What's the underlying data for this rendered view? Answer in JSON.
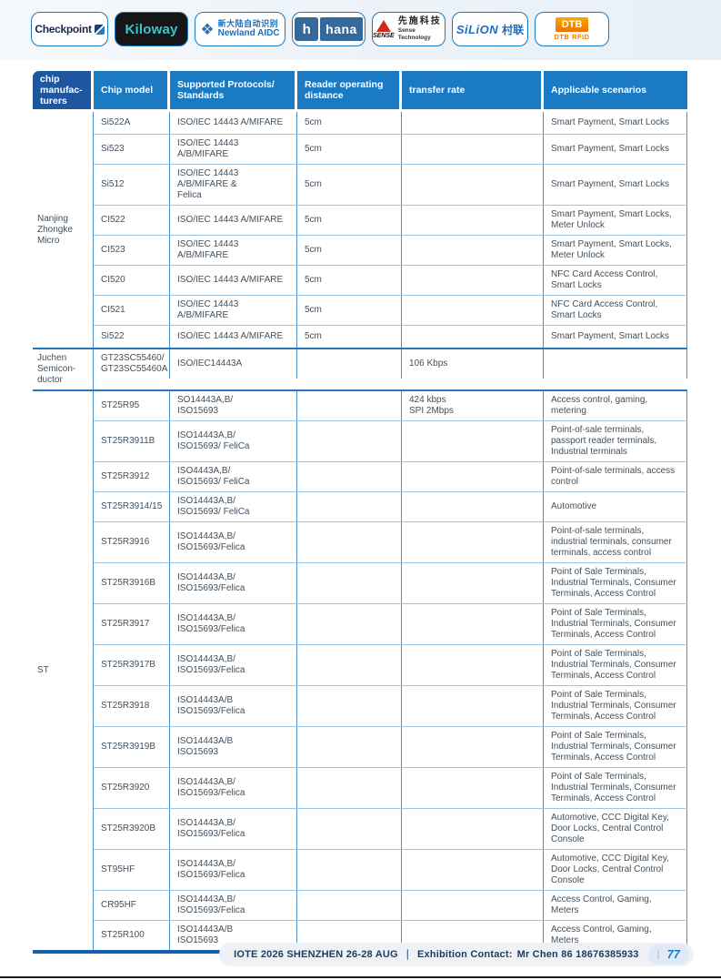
{
  "colors": {
    "accent_blue": "#1779c4",
    "header_first_cell": "#1e56a0",
    "header_cell": "#1a7ac4",
    "group_separator": "#2878bd",
    "row_separator": "#9ec4e4",
    "column_border": "#4a8fc7",
    "table_bottom_rule": "#1761ab",
    "body_text": "#42505c",
    "kiloway_cyan": "#38c5cd",
    "hana_blue": "#35689b",
    "sense_red": "#cf2a1b",
    "dtb_orange": "#ee7d00",
    "footer_bg": "#eef2f7"
  },
  "logos": {
    "checkpoint": {
      "text": "Checkpoint"
    },
    "kiloway": {
      "text": "Kiloway"
    },
    "newland": {
      "line1": "新大陆自动识别",
      "line2": "Newland AIDC"
    },
    "hana": {
      "icon_letter": "h",
      "text": "hana"
    },
    "sense": {
      "brand": "SENSE",
      "cn": "先施科技",
      "sub": "Sense Technology"
    },
    "silion": {
      "brand": "SiLiON",
      "cn": "村联"
    },
    "dtb": {
      "brand": "DTB",
      "sub": "DTB RFID"
    }
  },
  "table": {
    "headers": [
      "chip\nmanufac-\nturers",
      "Chip model",
      "Supported Protocols/\nStandards",
      "Reader operating\ndistance",
      "transfer rate",
      "Applicable scenarios"
    ],
    "groups": [
      {
        "manufacturer": "Nanjing\nZhongke\nMicro",
        "rows": [
          {
            "model": "Si522A",
            "protocols": "ISO/IEC 14443 A/MIFARE",
            "distance": "5cm",
            "rate": "",
            "scenarios": "Smart Payment, Smart Locks"
          },
          {
            "model": "Si523",
            "protocols": "ISO/IEC 14443 A/B/MIFARE",
            "distance": "5cm",
            "rate": "",
            "scenarios": "Smart Payment, Smart Locks"
          },
          {
            "model": "Si512",
            "protocols": "ISO/IEC 14443 A/B/MIFARE &\nFelica",
            "distance": "5cm",
            "rate": "",
            "scenarios": "Smart Payment, Smart Locks"
          },
          {
            "model": "CI522",
            "protocols": "ISO/IEC 14443 A/MIFARE",
            "distance": "5cm",
            "rate": "",
            "scenarios": "Smart Payment, Smart Locks, Meter Unlock"
          },
          {
            "model": "CI523",
            "protocols": "ISO/IEC 14443 A/B/MIFARE",
            "distance": "5cm",
            "rate": "",
            "scenarios": "Smart Payment, Smart Locks, Meter Unlock"
          },
          {
            "model": "CI520",
            "protocols": "ISO/IEC 14443 A/MIFARE",
            "distance": "5cm",
            "rate": "",
            "scenarios": "NFC Card Access Control, Smart Locks"
          },
          {
            "model": "CI521",
            "protocols": "ISO/IEC 14443 A/B/MIFARE",
            "distance": "5cm",
            "rate": "",
            "scenarios": "NFC Card Access Control, Smart Locks"
          },
          {
            "model": "Si522",
            "protocols": "ISO/IEC 14443 A/MIFARE",
            "distance": "5cm",
            "rate": "",
            "scenarios": "Smart Payment, Smart Locks"
          }
        ]
      },
      {
        "manufacturer": "Juchen\nSemicon-\nductor",
        "rows": [
          {
            "model": "GT23SC55460/\nGT23SC55460A",
            "protocols": "ISO/IEC14443A",
            "distance": "",
            "rate": "106 Kbps",
            "scenarios": ""
          }
        ]
      },
      {
        "manufacturer": "ST",
        "rows": [
          {
            "model": "ST25R95",
            "protocols": "SO14443A,B/\nISO15693",
            "distance": "",
            "rate": "424 kbps\nSPI 2Mbps",
            "scenarios": "Access control, gaming, metering"
          },
          {
            "model": "ST25R3911B",
            "protocols": "ISO14443A,B/\nISO15693/ FeliCa",
            "distance": "",
            "rate": "",
            "scenarios": "Point-of-sale terminals, passport reader terminals, Industrial terminals"
          },
          {
            "model": "ST25R3912",
            "protocols": "ISO4443A,B/\nISO15693/ FeliCa",
            "distance": "",
            "rate": "",
            "scenarios": "Point-of-sale terminals, access control"
          },
          {
            "model": "ST25R3914/15",
            "protocols": "ISO14443A,B/\nISO15693/ FeliCa",
            "distance": "",
            "rate": "",
            "scenarios": "Automotive"
          },
          {
            "model": "ST25R3916",
            "protocols": "ISO14443A,B/\nISO15693/Felica",
            "distance": "",
            "rate": "",
            "scenarios": "Point-of-sale terminals, industrial terminals, consumer terminals, access control"
          },
          {
            "model": "ST25R3916B",
            "protocols": "ISO14443A,B/\nISO15693/Felica",
            "distance": "",
            "rate": "",
            "scenarios": "Point of Sale Terminals, Industrial Terminals, Consumer Terminals, Access Control"
          },
          {
            "model": "ST25R3917",
            "protocols": "ISO14443A,B/\nISO15693/Felica",
            "distance": "",
            "rate": "",
            "scenarios": "Point of Sale Terminals, Industrial Terminals, Consumer Terminals, Access Control"
          },
          {
            "model": "ST25R3917B",
            "protocols": "ISO14443A,B/\nISO15693/Felica",
            "distance": "",
            "rate": "",
            "scenarios": "Point of Sale Terminals, Industrial Terminals, Consumer Terminals, Access Control"
          },
          {
            "model": "ST25R3918",
            "protocols": "ISO14443A/B\nISO15693/Felica",
            "distance": "",
            "rate": "",
            "scenarios": "Point of Sale Terminals, Industrial Terminals, Consumer Terminals, Access Control"
          },
          {
            "model": "ST25R3919B",
            "protocols": "ISO14443A/B\nISO15693",
            "distance": "",
            "rate": "",
            "scenarios": "Point of Sale Terminals, Industrial Terminals, Consumer Terminals, Access Control"
          },
          {
            "model": "ST25R3920",
            "protocols": "ISO14443A,B/\nISO15693/Felica",
            "distance": "",
            "rate": "",
            "scenarios": "Point of Sale Terminals, Industrial Terminals, Consumer Terminals, Access Control"
          },
          {
            "model": "ST25R3920B",
            "protocols": "ISO14443A,B/\nISO15693/Felica",
            "distance": "",
            "rate": "",
            "scenarios": "Automotive, CCC Digital Key, Door Locks, Central Control Console"
          },
          {
            "model": "ST95HF",
            "protocols": "ISO14443A,B/\nISO15693/Felica",
            "distance": "",
            "rate": "",
            "scenarios": "Automotive, CCC Digital Key, Door Locks, Central Control Console"
          },
          {
            "model": "CR95HF",
            "protocols": "ISO14443A,B/\nISO15693/Felica",
            "distance": "",
            "rate": "",
            "scenarios": "Access Control, Gaming, Meters"
          },
          {
            "model": "ST25R100",
            "protocols": "ISO14443A/B\nISO15693",
            "distance": "",
            "rate": "",
            "scenarios": "Access Control, Gaming, Meters"
          }
        ]
      }
    ]
  },
  "footer": {
    "event": "IOTE 2026 SHENZHEN 26-28 AUG",
    "separator": "｜",
    "contact_label": "Exhibition Contact:",
    "contact_value": "Mr Chen 86 18676385933",
    "pill_divider": "|",
    "page_number": "77"
  }
}
